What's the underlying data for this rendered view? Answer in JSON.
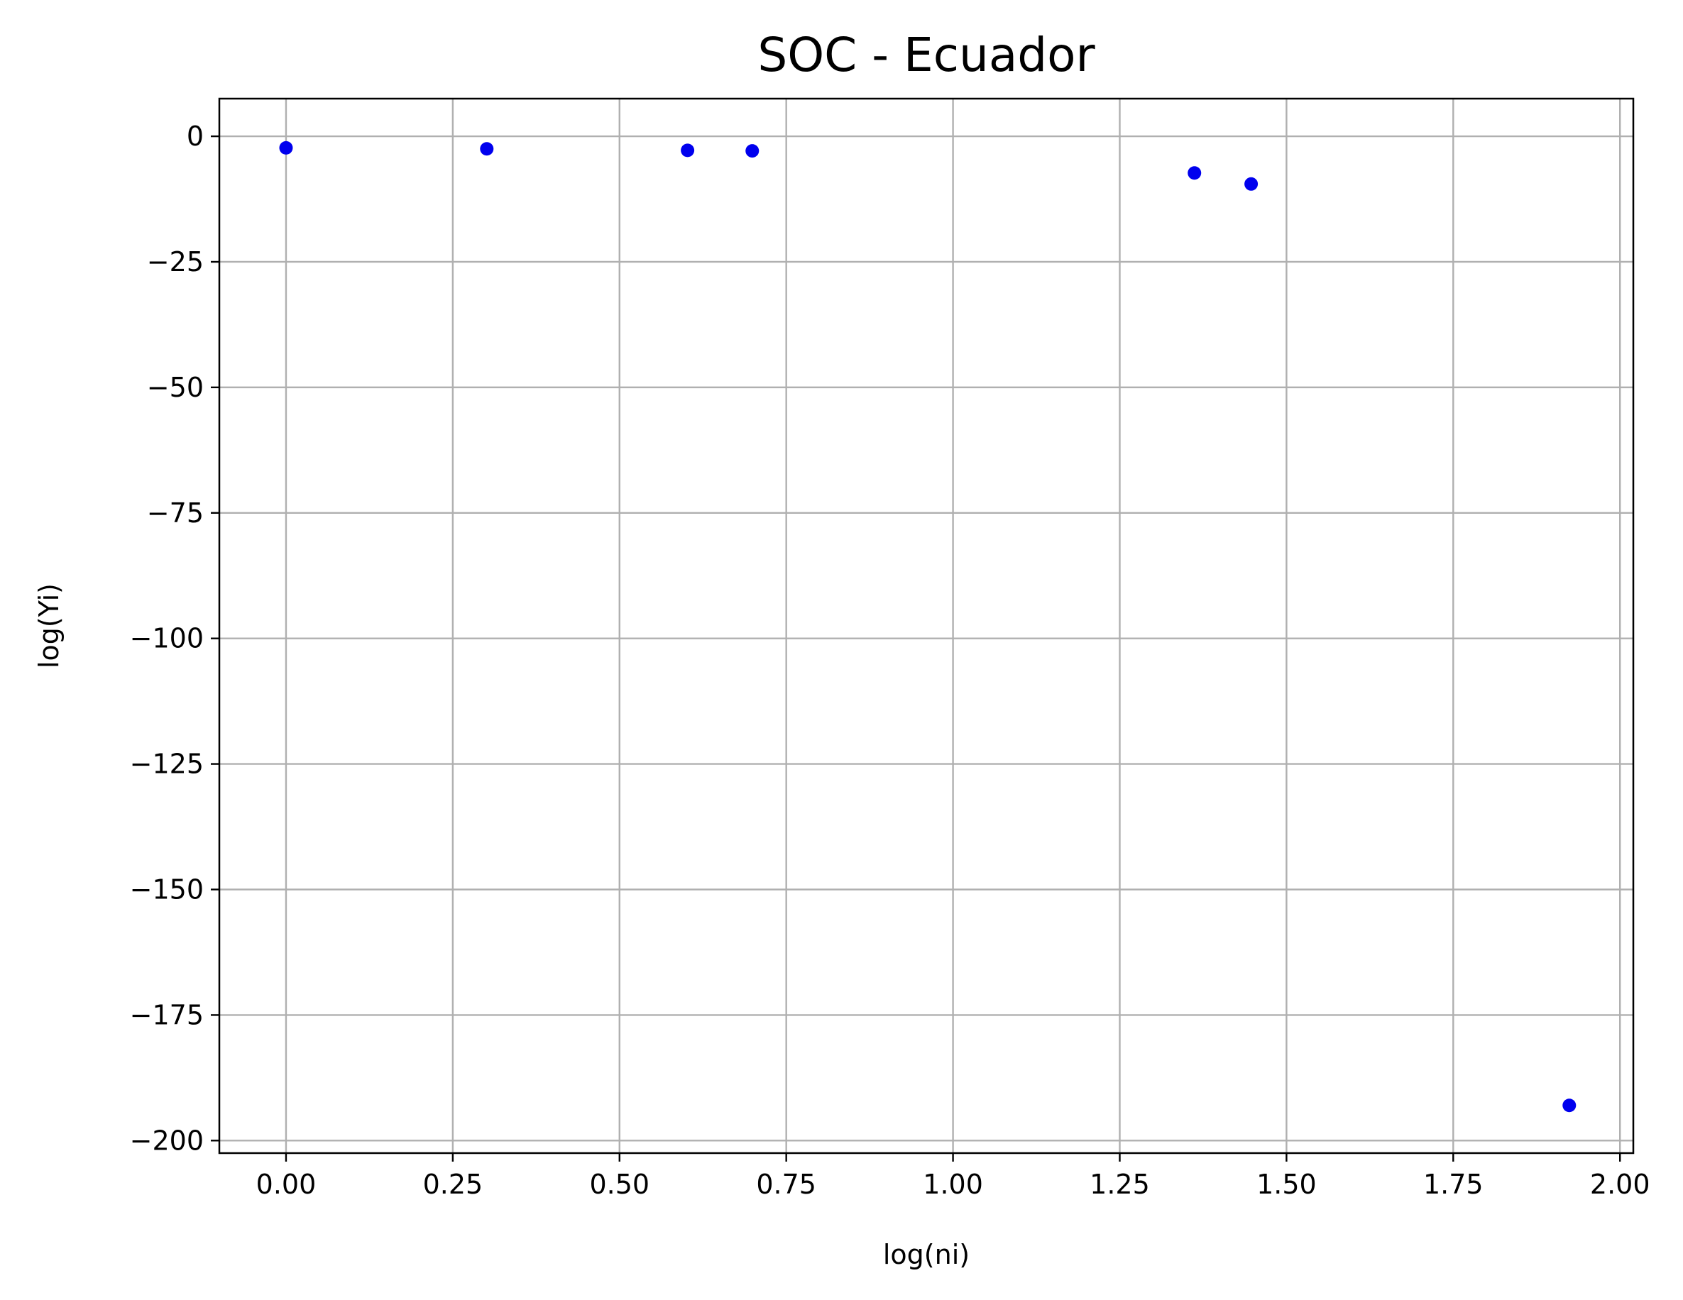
{
  "chart_data": {
    "type": "scatter",
    "title": "SOC - Ecuador",
    "xlabel": "log(ni)",
    "ylabel": "log(Yi)",
    "xlim": [
      -0.1,
      2.02
    ],
    "ylim": [
      -202.5,
      7.5
    ],
    "x_ticks": [
      0.0,
      0.25,
      0.5,
      0.75,
      1.0,
      1.25,
      1.5,
      1.75,
      2.0
    ],
    "x_tick_labels": [
      "0.00",
      "0.25",
      "0.50",
      "0.75",
      "1.00",
      "1.25",
      "1.50",
      "1.75",
      "2.00"
    ],
    "y_ticks": [
      0,
      -25,
      -50,
      -75,
      -100,
      -125,
      -150,
      -175,
      -200
    ],
    "y_tick_labels": [
      "0",
      "−25",
      "−50",
      "−75",
      "−100",
      "−125",
      "−150",
      "−175",
      "−200"
    ],
    "grid": true,
    "series": [
      {
        "color": "#0000ee",
        "x": [
          0.0,
          0.301,
          0.602,
          0.699,
          1.362,
          1.447,
          1.924
        ],
        "y": [
          -2.3,
          -2.5,
          -2.8,
          -2.9,
          -7.3,
          -9.5,
          -193.0
        ]
      }
    ]
  }
}
